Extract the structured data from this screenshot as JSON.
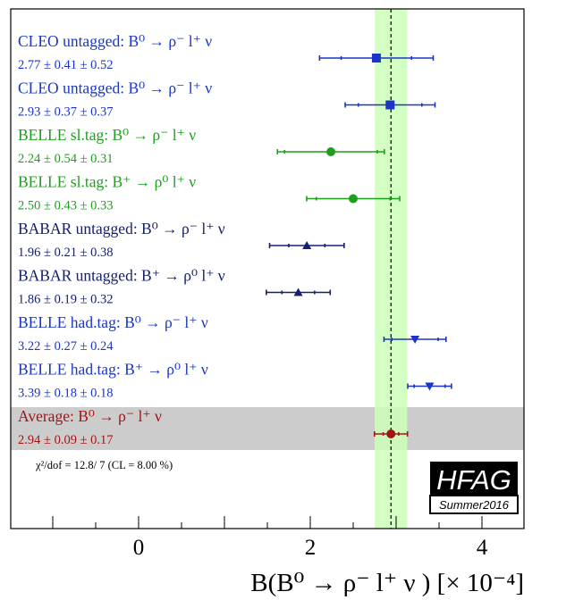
{
  "chart_data": {
    "type": "scatter",
    "xlim": [
      -1.5,
      4.5
    ],
    "xticks": [
      0,
      2,
      4
    ],
    "xlabel": "B(B⁰ → ρ⁻ l⁺ ν ) [× 10⁻⁴]",
    "grid": false,
    "average": {
      "value": 2.94,
      "band_total_error": 0.19,
      "label": "Average:   B⁰ → ρ⁻ l⁺ ν",
      "value_text": "2.94 ± 0.09 ± 0.17",
      "color": "#a31515",
      "stat": 0.09,
      "syst": 0.17
    },
    "chi2_text": "χ²/dof = 12.8/ 7 (CL = 8.00 %)",
    "measurements": [
      {
        "label": "CLEO untagged:  B⁰ → ρ⁻ l⁺ ν",
        "value_text": "2.77 ± 0.41 ± 0.52",
        "value": 2.77,
        "stat": 0.41,
        "syst": 0.52,
        "color": "#1a35c8",
        "marker": "square"
      },
      {
        "label": "CLEO untagged:   B⁰ → ρ⁻ l⁺ ν",
        "value_text": "2.93 ± 0.37 ± 0.37",
        "value": 2.93,
        "stat": 0.37,
        "syst": 0.37,
        "color": "#1a35c8",
        "marker": "square"
      },
      {
        "label": "BELLE sl.tag:  B⁰ → ρ⁻ l⁺ ν",
        "value_text": "2.24 ± 0.54 ± 0.31",
        "value": 2.24,
        "stat": 0.54,
        "syst": 0.31,
        "color": "#1e9e1e",
        "marker": "circle"
      },
      {
        "label": "BELLE sl.tag:  B⁺ → ρ⁰ l⁺ ν",
        "value_text": "2.50 ± 0.43 ± 0.33",
        "value": 2.5,
        "stat": 0.43,
        "syst": 0.33,
        "color": "#1e9e1e",
        "marker": "circle"
      },
      {
        "label": "BABAR untagged:  B⁰ → ρ⁻ l⁺ ν",
        "value_text": "1.96 ± 0.21 ± 0.38",
        "value": 1.96,
        "stat": 0.21,
        "syst": 0.38,
        "color": "#14206e",
        "marker": "triangle-up"
      },
      {
        "label": "BABAR untagged:  B⁺ → ρ⁰ l⁺ ν",
        "value_text": "1.86 ± 0.19 ± 0.32",
        "value": 1.86,
        "stat": 0.19,
        "syst": 0.32,
        "color": "#14206e",
        "marker": "triangle-up"
      },
      {
        "label": "BELLE had.tag:  B⁰ → ρ⁻ l⁺ ν",
        "value_text": "3.22 ± 0.27 ± 0.24",
        "value": 3.22,
        "stat": 0.27,
        "syst": 0.24,
        "color": "#1a35c8",
        "marker": "triangle-down"
      },
      {
        "label": "BELLE had.tag:  B⁺ → ρ⁰ l⁺ ν",
        "value_text": "3.39 ± 0.18 ± 0.18",
        "value": 3.39,
        "stat": 0.18,
        "syst": 0.18,
        "color": "#1a35c8",
        "marker": "triangle-down"
      }
    ]
  },
  "logo": {
    "main": "HFAG",
    "sub": "Summer2016"
  }
}
